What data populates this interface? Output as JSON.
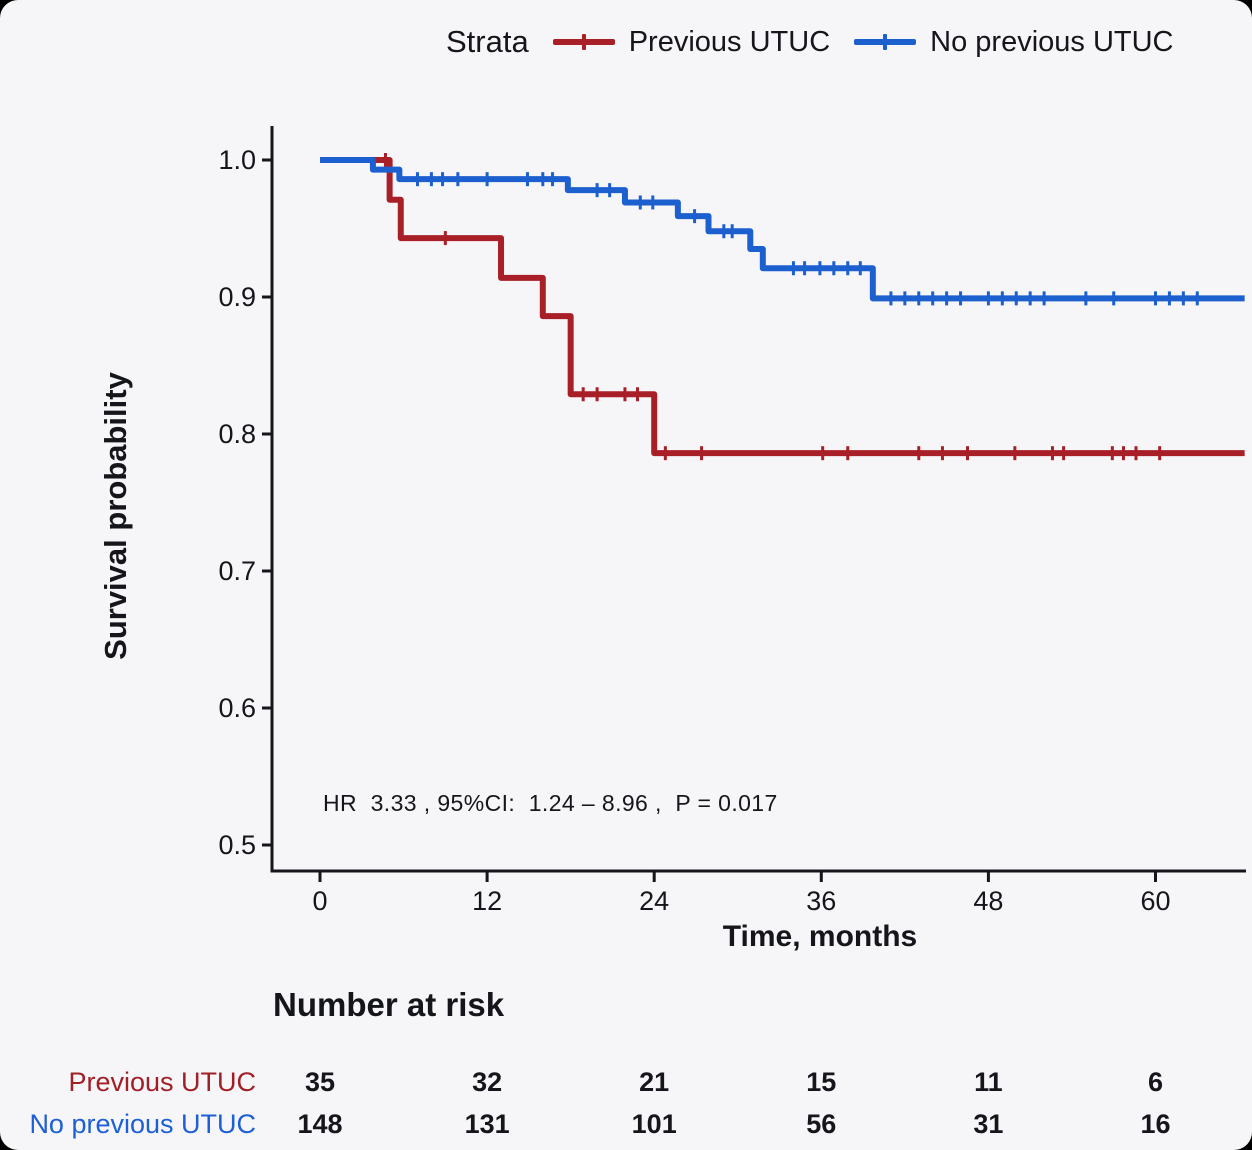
{
  "legend": {
    "title": "Strata",
    "items": [
      {
        "label": "Previous UTUC",
        "color": "#a81f28"
      },
      {
        "label": "No previous UTUC",
        "color": "#1c5fce"
      }
    ]
  },
  "axes": {
    "y_label": "Survival probability",
    "x_label": "Time, months",
    "y_ticks": [
      "1.0",
      "0.9",
      "0.8",
      "0.7",
      "0.6",
      "0.5"
    ],
    "x_ticks": [
      "0",
      "12",
      "24",
      "36",
      "48",
      "60"
    ]
  },
  "annotation": {
    "text": "HR  3.33 , 95%CI:  1.24 – 8.96 ,  P = 0.017"
  },
  "risk_table": {
    "title": "Number at risk",
    "rows": [
      {
        "label": "Previous UTUC",
        "color": "#a02028",
        "values": [
          "35",
          "32",
          "21",
          "15",
          "11",
          "6"
        ]
      },
      {
        "label": "No previous UTUC",
        "color": "#1c5fd6",
        "values": [
          "148",
          "131",
          "101",
          "56",
          "31",
          "16"
        ]
      }
    ]
  },
  "chart_data": {
    "type": "line",
    "subtype": "kaplan-meier-step",
    "title": "",
    "xlabel": "Time, months",
    "ylabel": "Survival probability",
    "xlim": [
      0,
      66.4
    ],
    "ylim_displayed": [
      0.5,
      1.0
    ],
    "x_ticks": [
      0,
      12,
      24,
      36,
      48,
      60
    ],
    "y_ticks": [
      1.0,
      0.9,
      0.8,
      0.7,
      0.6,
      0.5
    ],
    "grid": false,
    "legend_position": "top",
    "annotation": "HR 3.33, 95%CI: 1.24 - 8.96, P = 0.017",
    "series": [
      {
        "name": "Previous UTUC",
        "color": "#a81f28",
        "points": [
          [
            0,
            1.0
          ],
          [
            5.0,
            0.971
          ],
          [
            5.8,
            0.943
          ],
          [
            13.0,
            0.914
          ],
          [
            16.0,
            0.886
          ],
          [
            18.0,
            0.829
          ],
          [
            24.0,
            0.786
          ],
          [
            66.4,
            0.786
          ]
        ],
        "censors": [
          [
            4.7,
            1.0
          ],
          [
            9.0,
            0.943
          ],
          [
            18.9,
            0.829
          ],
          [
            19.9,
            0.829
          ],
          [
            21.9,
            0.829
          ],
          [
            22.8,
            0.829
          ],
          [
            24.8,
            0.786
          ],
          [
            27.4,
            0.786
          ],
          [
            36.1,
            0.786
          ],
          [
            37.9,
            0.786
          ],
          [
            43.0,
            0.786
          ],
          [
            44.7,
            0.786
          ],
          [
            46.5,
            0.786
          ],
          [
            49.9,
            0.786
          ],
          [
            52.6,
            0.786
          ],
          [
            53.4,
            0.786
          ],
          [
            56.9,
            0.786
          ],
          [
            57.7,
            0.786
          ],
          [
            58.6,
            0.786
          ],
          [
            60.3,
            0.786
          ]
        ]
      },
      {
        "name": "No previous UTUC",
        "color": "#1c5fce",
        "points": [
          [
            0,
            1.0
          ],
          [
            3.8,
            0.993
          ],
          [
            5.7,
            0.986
          ],
          [
            17.8,
            0.978
          ],
          [
            21.9,
            0.969
          ],
          [
            25.7,
            0.959
          ],
          [
            27.9,
            0.948
          ],
          [
            30.9,
            0.935
          ],
          [
            31.8,
            0.921
          ],
          [
            39.7,
            0.899
          ],
          [
            66.4,
            0.899
          ]
        ],
        "censors": [
          [
            7.0,
            0.986
          ],
          [
            8.0,
            0.986
          ],
          [
            8.8,
            0.986
          ],
          [
            9.9,
            0.986
          ],
          [
            12.0,
            0.986
          ],
          [
            14.9,
            0.986
          ],
          [
            16.0,
            0.986
          ],
          [
            16.7,
            0.986
          ],
          [
            19.9,
            0.978
          ],
          [
            20.8,
            0.978
          ],
          [
            23.0,
            0.969
          ],
          [
            23.9,
            0.969
          ],
          [
            26.9,
            0.959
          ],
          [
            29.0,
            0.948
          ],
          [
            29.6,
            0.948
          ],
          [
            34.0,
            0.921
          ],
          [
            34.8,
            0.921
          ],
          [
            35.9,
            0.921
          ],
          [
            36.9,
            0.921
          ],
          [
            37.9,
            0.921
          ],
          [
            38.8,
            0.921
          ],
          [
            41.0,
            0.899
          ],
          [
            42.0,
            0.899
          ],
          [
            43.0,
            0.899
          ],
          [
            44.0,
            0.899
          ],
          [
            45.0,
            0.899
          ],
          [
            46.0,
            0.899
          ],
          [
            48.0,
            0.899
          ],
          [
            49.0,
            0.899
          ],
          [
            50.0,
            0.899
          ],
          [
            51.0,
            0.899
          ],
          [
            52.0,
            0.899
          ],
          [
            55.0,
            0.899
          ],
          [
            57.0,
            0.899
          ],
          [
            60.0,
            0.899
          ],
          [
            61.0,
            0.899
          ],
          [
            62.0,
            0.899
          ],
          [
            63.0,
            0.899
          ]
        ]
      }
    ],
    "number_at_risk": {
      "time": [
        0,
        12,
        24,
        36,
        48,
        60
      ],
      "Previous UTUC": [
        35,
        32,
        21,
        15,
        11,
        6
      ],
      "No previous UTUC": [
        148,
        131,
        101,
        56,
        31,
        16
      ]
    }
  }
}
